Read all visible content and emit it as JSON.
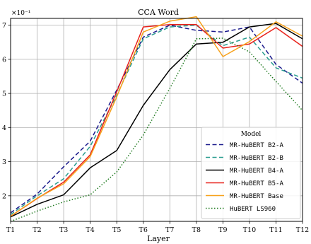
{
  "chart_data": {
    "type": "line",
    "title": "CCA Word",
    "xlabel": "Layer",
    "ylabel": "",
    "y_multiplier_label": "×10⁻¹",
    "categories": [
      "T1",
      "T2",
      "T3",
      "T4",
      "T5",
      "T6",
      "T7",
      "T8",
      "T9",
      "T10",
      "T11",
      "T12"
    ],
    "ylim": [
      1.25,
      7.2
    ],
    "yticks": [
      "2",
      "3",
      "4",
      "5",
      "6",
      "7"
    ],
    "grid": true,
    "legend": {
      "title": "Model",
      "position": "lower-right"
    },
    "series": [
      {
        "name": "MR-HuBERT B2-A",
        "color": "#1a1a8c",
        "dash": "dashed",
        "values": [
          1.5,
          2.05,
          2.85,
          3.6,
          5.1,
          6.65,
          7.0,
          6.85,
          6.8,
          6.95,
          5.85,
          5.3
        ]
      },
      {
        "name": "MR-HuBERT B2-B",
        "color": "#2a9d8f",
        "dash": "dashed",
        "values": [
          1.45,
          2.0,
          2.5,
          3.45,
          4.95,
          6.6,
          6.95,
          7.0,
          6.4,
          6.65,
          5.75,
          5.45
        ]
      },
      {
        "name": "MR-HuBERT B4-A",
        "color": "#000000",
        "dash": "solid",
        "values": [
          1.38,
          1.75,
          2.03,
          2.82,
          3.33,
          4.65,
          5.7,
          6.45,
          6.5,
          6.95,
          7.05,
          6.6
        ]
      },
      {
        "name": "MR-HuBERT B5-A",
        "color": "#e8221b",
        "dash": "solid",
        "values": [
          1.4,
          1.92,
          2.4,
          3.2,
          5.05,
          6.95,
          7.02,
          7.02,
          6.33,
          6.45,
          6.93,
          6.38
        ]
      },
      {
        "name": "MR-HuBERT Base",
        "color": "#f7a21c",
        "dash": "solid",
        "values": [
          1.4,
          1.93,
          2.35,
          3.15,
          4.9,
          6.8,
          7.12,
          7.25,
          6.08,
          6.52,
          7.1,
          6.68
        ]
      },
      {
        "name": "HuBERT LS960",
        "color": "#1f7a1f",
        "dash": "dotted",
        "values": [
          1.25,
          1.55,
          1.82,
          2.03,
          2.7,
          3.78,
          5.15,
          6.6,
          6.62,
          6.22,
          5.35,
          4.5
        ]
      }
    ]
  }
}
